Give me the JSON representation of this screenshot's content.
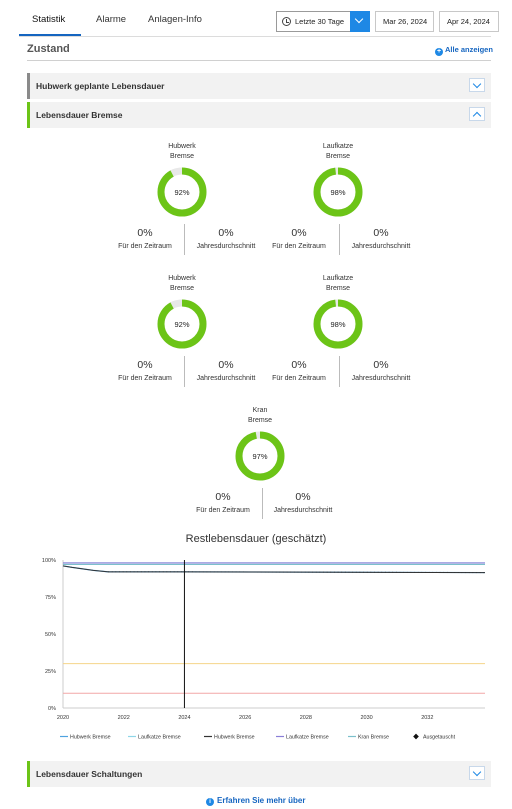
{
  "tabs": [
    {
      "label": "Statistik",
      "active": true
    },
    {
      "label": "Alarme",
      "active": false
    },
    {
      "label": "Anlagen-Info",
      "active": false
    }
  ],
  "filters": {
    "range_label": "Letzte 30 Tage",
    "date_from": "Mar 26, 2024",
    "date_to": "Apr 24, 2024"
  },
  "section": {
    "title": "Zustand",
    "show_all": "Alle anzeigen"
  },
  "accordions": {
    "hubwerk": "Hubwerk geplante Lebensdauer",
    "bremse": "Lebensdauer Bremse",
    "schaltungen": "Lebensdauer Schaltungen"
  },
  "gauges": [
    {
      "name1": "Hubwerk",
      "name2": "Bremse",
      "percent": 92,
      "pct_label": "92%",
      "period_value": "0%",
      "period_label": "Für den Zeitraum",
      "avg_value": "0%",
      "avg_label": "Jahresdurchschnitt"
    },
    {
      "name1": "Laufkatze",
      "name2": "Bremse",
      "percent": 98,
      "pct_label": "98%",
      "period_value": "0%",
      "period_label": "Für den Zeitraum",
      "avg_value": "0%",
      "avg_label": "Jahresdurchschnitt"
    },
    {
      "name1": "Hubwerk",
      "name2": "Bremse",
      "percent": 92,
      "pct_label": "92%",
      "period_value": "0%",
      "period_label": "Für den Zeitraum",
      "avg_value": "0%",
      "avg_label": "Jahresdurchschnitt"
    },
    {
      "name1": "Laufkatze",
      "name2": "Bremse",
      "percent": 98,
      "pct_label": "98%",
      "period_value": "0%",
      "period_label": "Für den Zeitraum",
      "avg_value": "0%",
      "avg_label": "Jahresdurchschnitt"
    },
    {
      "name1": "Kran",
      "name2": "Bremse",
      "percent": 97,
      "pct_label": "97%",
      "period_value": "0%",
      "period_label": "Für den Zeitraum",
      "avg_value": "0%",
      "avg_label": "Jahresdurchschnitt"
    }
  ],
  "colors": {
    "accent": "#1e88e5",
    "gauge_green": "#6cc417",
    "gauge_track": "#e8e8e8",
    "bar_gray": "#8a8a8a",
    "bar_green": "#6cc417"
  },
  "chart_data": {
    "type": "line",
    "title": "Restlebensdauer (geschätzt)",
    "x_ticks": [
      "2020",
      "2022",
      "2024",
      "2026",
      "2028",
      "2030",
      "2032"
    ],
    "y_ticks": [
      "0%",
      "25%",
      "50%",
      "75%",
      "100%"
    ],
    "xlim": [
      2020,
      2033.9
    ],
    "ylim": [
      0,
      100
    ],
    "grid": false,
    "legend_position": "bottom",
    "series": [
      {
        "name": "Hubwerk Bremse",
        "color": "#4fa3e0",
        "style": "line",
        "x": [
          2020.0,
          2020.3,
          2021.0,
          2021.5,
          2022.0,
          2024.0,
          2028.0,
          2033.9
        ],
        "y": [
          96,
          95,
          93,
          92,
          92,
          92,
          91.8,
          91.5
        ]
      },
      {
        "name": "Laufkatze Bremse",
        "color": "#8fd6e8",
        "style": "line",
        "x": [
          2020.0,
          2033.9
        ],
        "y": [
          98,
          98
        ]
      },
      {
        "name": "Hubwerk Bremse",
        "color": "#333333",
        "style": "line",
        "x": [
          2020.0,
          2020.3,
          2021.0,
          2021.5,
          2022.0,
          2024.0,
          2028.0,
          2033.9
        ],
        "y": [
          96,
          95,
          93,
          92,
          92,
          92,
          91.8,
          91.5
        ]
      },
      {
        "name": "Laufkatze Bremse",
        "color": "#8a7fd8",
        "style": "line",
        "x": [
          2020.0,
          2033.9
        ],
        "y": [
          98,
          98
        ]
      },
      {
        "name": "Kran Bremse",
        "color": "#7cc0cc",
        "style": "line",
        "x": [
          2020.0,
          2033.9
        ],
        "y": [
          97,
          97
        ]
      },
      {
        "name": "Ausgetauscht",
        "color": "#111111",
        "style": "diamond",
        "x": [],
        "y": []
      }
    ],
    "reference_lines": [
      {
        "y": 30,
        "color": "#f5d48a"
      },
      {
        "y": 10,
        "color": "#f2a7a7"
      }
    ],
    "current_marker_x": 2024.0
  },
  "footer": {
    "learn_more": "Erfahren Sie mehr über"
  }
}
